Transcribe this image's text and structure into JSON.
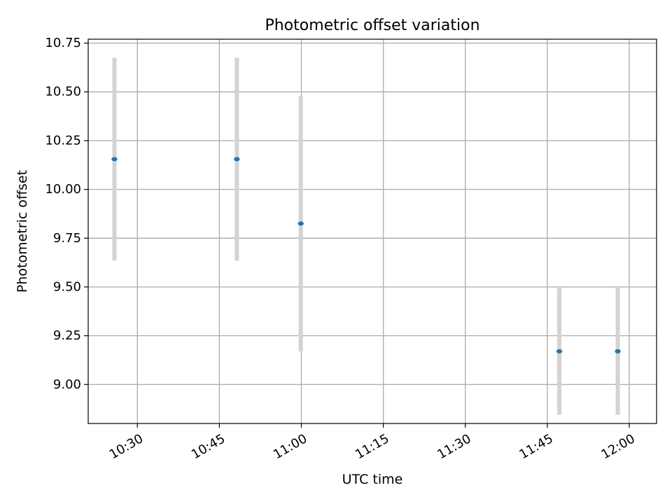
{
  "chart_data": {
    "type": "scatter",
    "title": "Photometric offset variation",
    "xlabel": "UTC time",
    "ylabel": "Photometric offset",
    "grid": true,
    "x_unit": "minutes since 10:00 UTC",
    "xlim": [
      21,
      125
    ],
    "ylim": [
      8.8,
      10.77
    ],
    "x_ticks": [
      {
        "value": 30,
        "label": "10:30"
      },
      {
        "value": 45,
        "label": "10:45"
      },
      {
        "value": 60,
        "label": "11:00"
      },
      {
        "value": 75,
        "label": "11:15"
      },
      {
        "value": 90,
        "label": "11:30"
      },
      {
        "value": 105,
        "label": "11:45"
      },
      {
        "value": 120,
        "label": "12:00"
      }
    ],
    "y_ticks": [
      {
        "value": 9.0,
        "label": "9.00"
      },
      {
        "value": 9.25,
        "label": "9.25"
      },
      {
        "value": 9.5,
        "label": "9.50"
      },
      {
        "value": 9.75,
        "label": "9.75"
      },
      {
        "value": 10.0,
        "label": "10.00"
      },
      {
        "value": 10.25,
        "label": "10.25"
      },
      {
        "value": 10.5,
        "label": "10.50"
      },
      {
        "value": 10.75,
        "label": "10.75"
      }
    ],
    "series": [
      {
        "name": "Photometric offset",
        "color": "#1f77b4",
        "errorbar_color": "#d3d3d3",
        "points": [
          {
            "x": 25.8,
            "y": 10.155,
            "yerr": 0.52
          },
          {
            "x": 48.2,
            "y": 10.155,
            "yerr": 0.52
          },
          {
            "x": 59.9,
            "y": 9.825,
            "yerr": 0.655
          },
          {
            "x": 107.2,
            "y": 9.17,
            "yerr": 0.325
          },
          {
            "x": 117.9,
            "y": 9.17,
            "yerr": 0.325
          }
        ]
      }
    ]
  }
}
